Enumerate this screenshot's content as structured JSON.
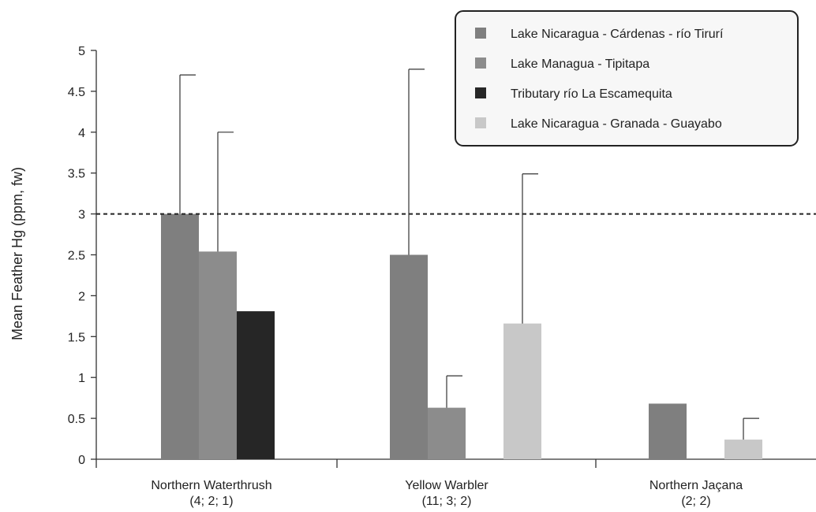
{
  "chart_data": {
    "type": "bar",
    "ylabel": "Mean Feather Hg (ppm, fw)",
    "xlabel": "",
    "ylim": [
      0,
      5
    ],
    "yticks": [
      "0",
      "0.5",
      "1",
      "1.5",
      "2",
      "2.5",
      "3",
      "3.5",
      "4",
      "4.5",
      "5"
    ],
    "reference_line": {
      "value": 3,
      "style": "dashed"
    },
    "legend_position": "top-right",
    "grid": false,
    "categories": [
      {
        "name": "Northern Waterthrush",
        "n": "(4; 2; 1)"
      },
      {
        "name": "Yellow Warbler",
        "n": "(11; 3; 2)"
      },
      {
        "name": "Northern Jaçana",
        "n": "(2; 2)"
      }
    ],
    "series": [
      {
        "name": "Lake Nicaragua - Cárdenas - río Tirurí",
        "color": "#7f7f7f",
        "values": [
          3.0,
          2.5,
          0.68
        ],
        "error_upper": [
          4.7,
          4.77,
          null
        ]
      },
      {
        "name": "Lake Managua - Tipitapa",
        "color": "#8c8c8c",
        "values": [
          2.54,
          0.63,
          null
        ],
        "error_upper": [
          4.0,
          1.02,
          null
        ]
      },
      {
        "name": "Tributary río La Escamequita",
        "color": "#262626",
        "values": [
          1.81,
          null,
          null
        ],
        "error_upper": [
          null,
          null,
          null
        ]
      },
      {
        "name": "Lake Nicaragua - Granada - Guayabo",
        "color": "#c8c8c8",
        "values": [
          null,
          1.66,
          0.24
        ],
        "error_upper": [
          null,
          3.49,
          0.5
        ]
      }
    ]
  }
}
